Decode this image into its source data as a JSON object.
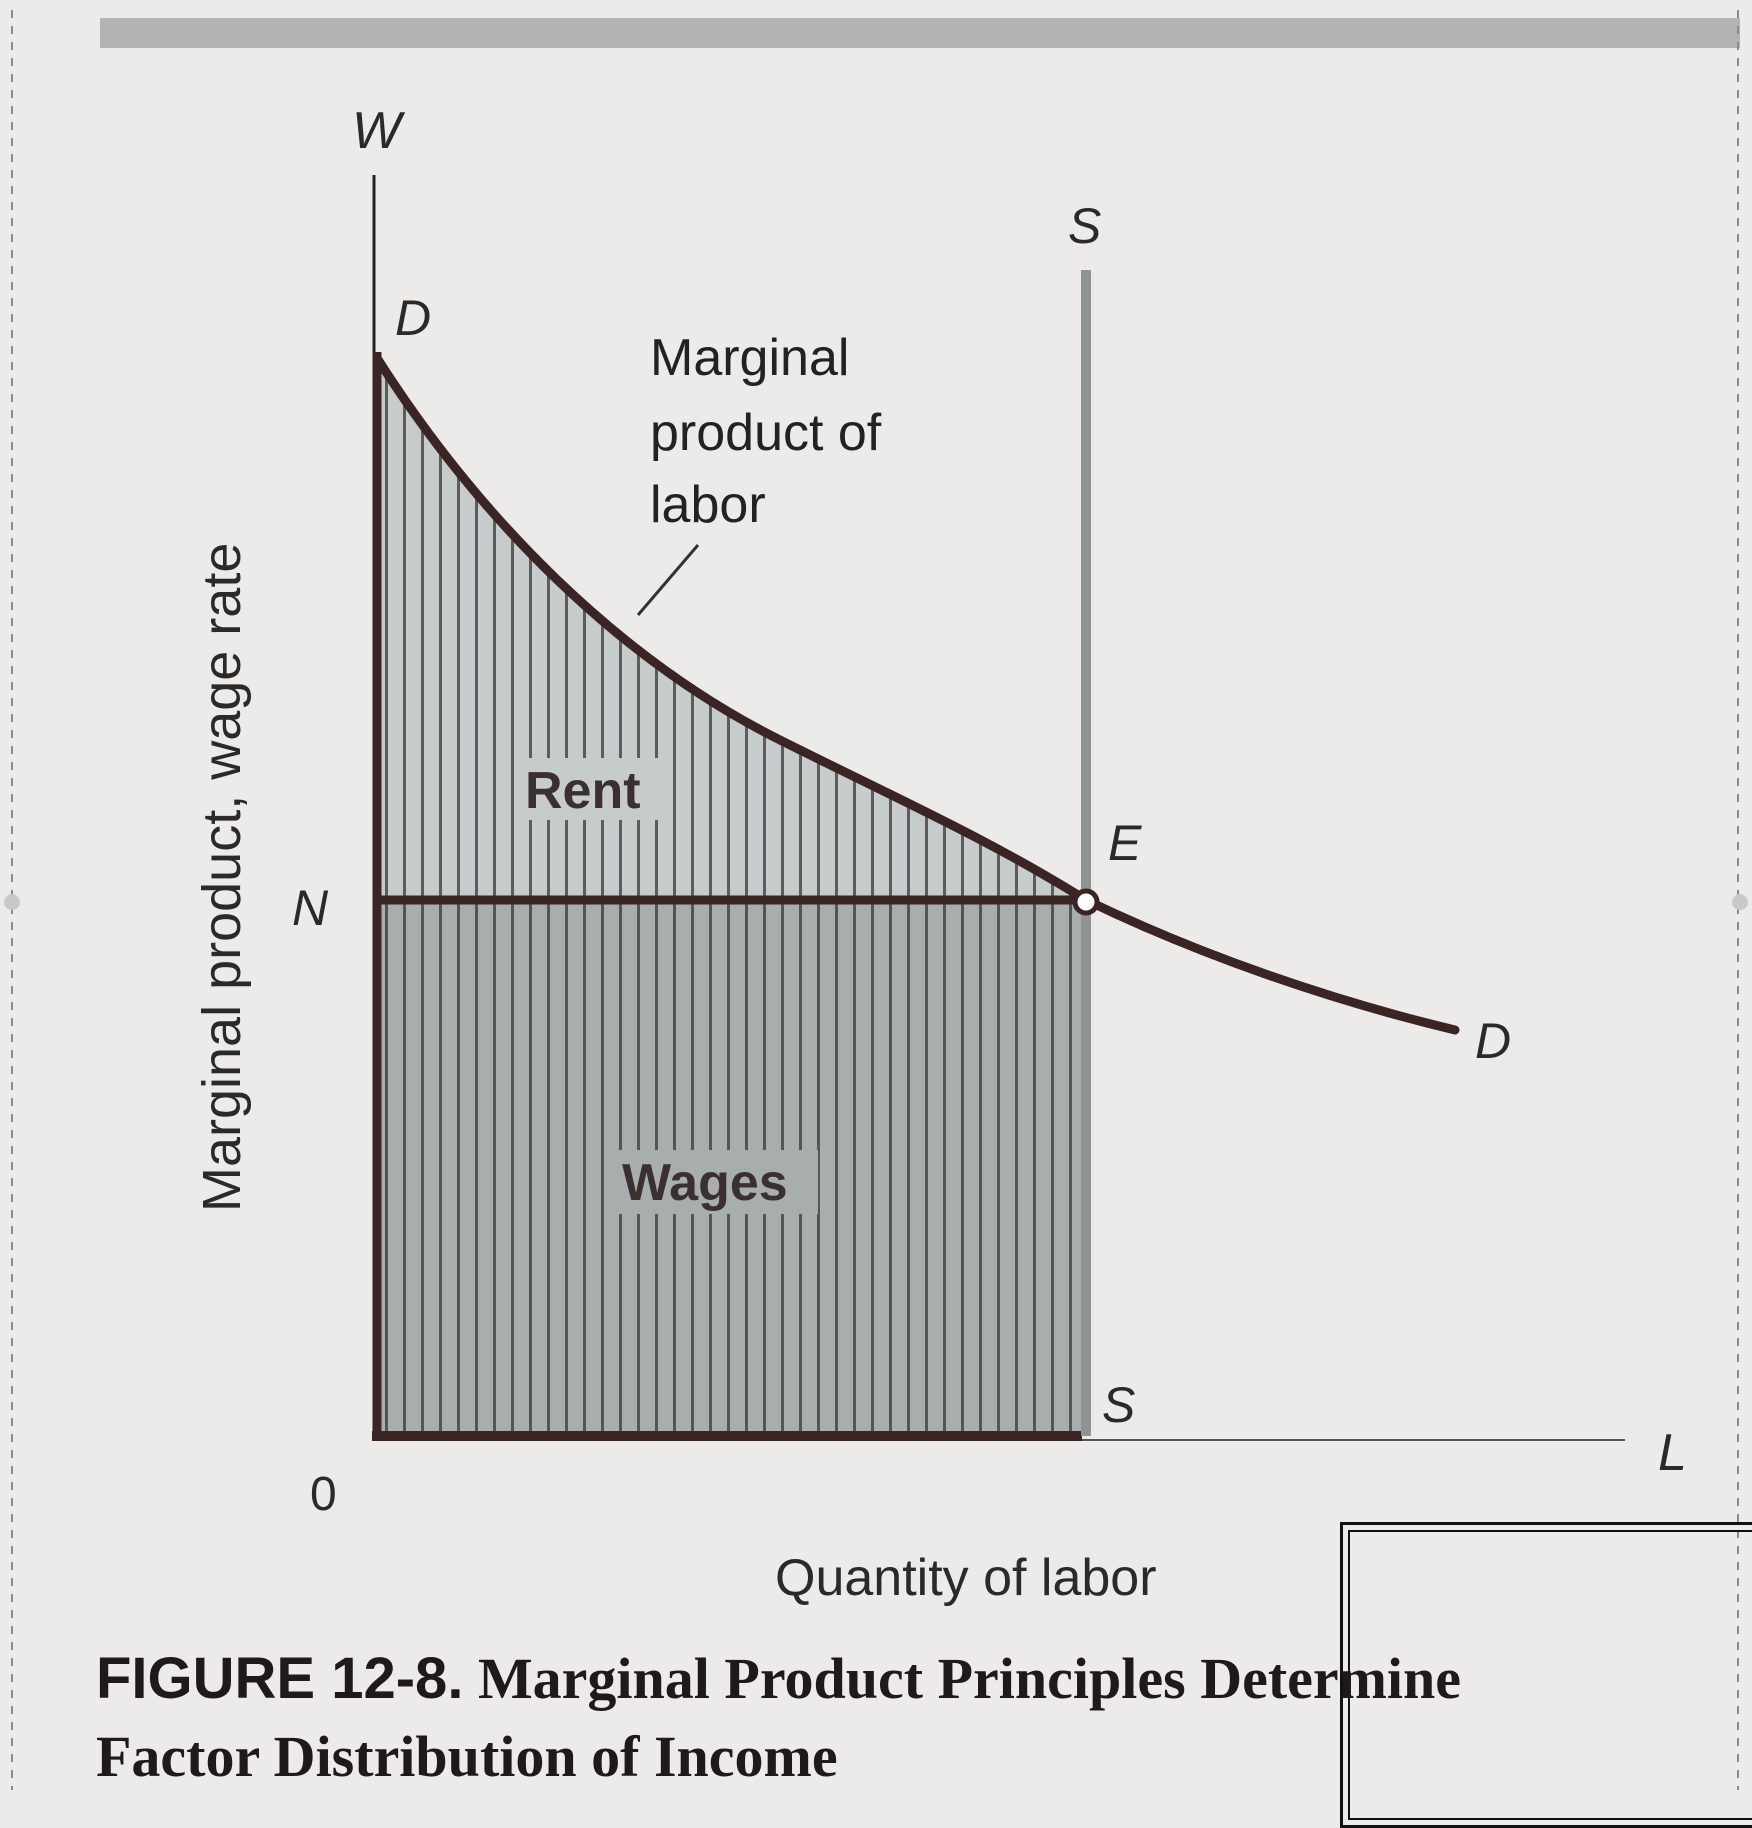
{
  "diagram": {
    "axis_y_letter": "W",
    "axis_x_letter": "L",
    "origin": "0",
    "y_axis_title": "Marginal product, wage rate",
    "x_axis_title": "Quantity of labor",
    "demand_label_top": "D",
    "demand_label_bottom": "D",
    "supply_label_top": "S",
    "supply_label_bottom": "S",
    "equilibrium_label": "E",
    "wage_level_label": "N",
    "curve_annotation_line1": "Marginal",
    "curve_annotation_line2": "product of",
    "curve_annotation_line3": "labor",
    "region_rent": "Rent",
    "region_wages": "Wages"
  },
  "caption": {
    "figure_number": "FIGURE 12-8.",
    "title_line1": "Marginal Product Principles Determine",
    "title_line2": "Factor Distribution of Income"
  },
  "colors": {
    "curve": "#3a2424",
    "rent_fill": "#c6cbcb",
    "wages_fill": "#a8aeae",
    "supply_line": "#8f9393",
    "background": "#ecebea"
  }
}
